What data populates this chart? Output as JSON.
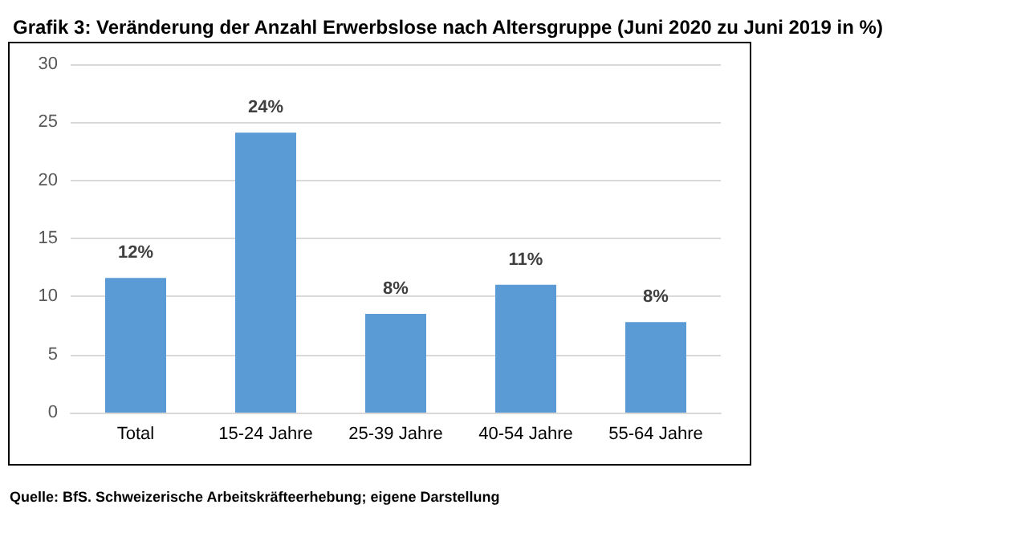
{
  "chart_data": {
    "type": "bar",
    "title": "Grafik 3: Veränderung der Anzahl Erwerbslose nach Altersgruppe (Juni 2020 zu Juni 2019 in %)",
    "categories": [
      "Total",
      "15-24 Jahre",
      "25-39 Jahre",
      "40-54 Jahre",
      "55-64 Jahre"
    ],
    "values": [
      11.6,
      24.1,
      8.5,
      11.0,
      7.8
    ],
    "value_labels": [
      "12%",
      "24%",
      "8%",
      "11%",
      "8%"
    ],
    "color": "#5b9bd5",
    "ylim": [
      0,
      30
    ],
    "yticks": [
      0,
      5,
      10,
      15,
      20,
      25,
      30
    ],
    "grid": "y",
    "annotations": [
      "Quelle: BfS. Schweizerische Arbeitskräfteerhebung; eigene Darstellung"
    ]
  }
}
